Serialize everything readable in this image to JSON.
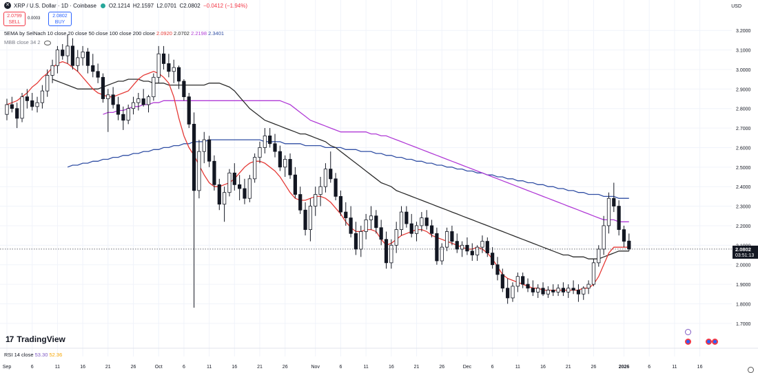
{
  "header": {
    "symbol": "XRP / U.S. Dollar · 1D · Coinbase",
    "open": "O2.1214",
    "high": "H2.1597",
    "low": "L2.0701",
    "close": "C2.0802",
    "change": "−0.0412 (−1.94%)",
    "sell_price": "2.0799",
    "sell_label": "SELL",
    "spread": "0.0003",
    "buy_price": "2.0802",
    "buy_label": "BUY",
    "currency": "USD"
  },
  "indicators": {
    "ema_label": "5EMA by SelNach 10 close 20 close 50 close 100 close 200 close",
    "ema_values": [
      "2.0920",
      "2.0702",
      "2.2198",
      "2.3401"
    ],
    "mbb_label": "MBB close 34 2",
    "rsi_label": "RSI 14 close",
    "rsi_values": [
      "53.30",
      "52.36"
    ]
  },
  "brand": {
    "logo_mark": "17",
    "name": "TradingView"
  },
  "colors": {
    "up": "#ffffff",
    "down": "#131722",
    "ema10": "#e53935",
    "ema50": "#2b2b2b",
    "ema100": "#b03ad6",
    "ema200": "#2f4da3",
    "negative": "#f23645",
    "accent": "#2962ff"
  },
  "chart_data": {
    "type": "candlestick",
    "ylim": [
      1.65,
      3.25
    ],
    "y_ticks": [
      "3.2000",
      "3.1000",
      "3.0000",
      "2.9000",
      "2.8000",
      "2.7000",
      "2.6000",
      "2.5000",
      "2.4000",
      "2.3000",
      "2.2000",
      "2.1000",
      "2.0000",
      "1.9000",
      "1.8000",
      "1.7000"
    ],
    "last_price": "2.0802",
    "countdown": "03:51:13",
    "x_ticks": [
      {
        "i": 0,
        "label": "Sep"
      },
      {
        "i": 5,
        "label": "6"
      },
      {
        "i": 10,
        "label": "11"
      },
      {
        "i": 15,
        "label": "16"
      },
      {
        "i": 20,
        "label": "21"
      },
      {
        "i": 25,
        "label": "26"
      },
      {
        "i": 30,
        "label": "Oct"
      },
      {
        "i": 35,
        "label": "6"
      },
      {
        "i": 40,
        "label": "11"
      },
      {
        "i": 45,
        "label": "16"
      },
      {
        "i": 50,
        "label": "21"
      },
      {
        "i": 55,
        "label": "26"
      },
      {
        "i": 61,
        "label": "Nov"
      },
      {
        "i": 66,
        "label": "6"
      },
      {
        "i": 71,
        "label": "11"
      },
      {
        "i": 76,
        "label": "16"
      },
      {
        "i": 81,
        "label": "21"
      },
      {
        "i": 86,
        "label": "26"
      },
      {
        "i": 91,
        "label": "Dec"
      },
      {
        "i": 96,
        "label": "6"
      },
      {
        "i": 101,
        "label": "11"
      },
      {
        "i": 106,
        "label": "16"
      },
      {
        "i": 111,
        "label": "21"
      },
      {
        "i": 116,
        "label": "26"
      },
      {
        "i": 122,
        "label": "2026"
      },
      {
        "i": 127,
        "label": "6"
      },
      {
        "i": 132,
        "label": "11"
      },
      {
        "i": 137,
        "label": "16"
      }
    ],
    "candles": [
      [
        2.77,
        2.85,
        2.74,
        2.82
      ],
      [
        2.82,
        2.86,
        2.78,
        2.8
      ],
      [
        2.8,
        2.83,
        2.7,
        2.75
      ],
      [
        2.75,
        2.88,
        2.73,
        2.86
      ],
      [
        2.86,
        2.9,
        2.8,
        2.84
      ],
      [
        2.84,
        2.88,
        2.79,
        2.81
      ],
      [
        2.81,
        2.86,
        2.78,
        2.83
      ],
      [
        2.83,
        2.92,
        2.8,
        2.89
      ],
      [
        2.89,
        3.0,
        2.86,
        2.97
      ],
      [
        2.97,
        3.05,
        2.93,
        3.02
      ],
      [
        3.02,
        3.12,
        2.98,
        3.1
      ],
      [
        3.1,
        3.13,
        3.05,
        3.07
      ],
      [
        3.07,
        3.18,
        3.03,
        3.12
      ],
      [
        3.12,
        3.16,
        3.0,
        3.02
      ],
      [
        3.02,
        3.1,
        2.99,
        3.06
      ],
      [
        3.06,
        3.12,
        3.02,
        3.09
      ],
      [
        3.09,
        3.11,
        2.98,
        3.02
      ],
      [
        3.02,
        3.08,
        2.96,
        2.99
      ],
      [
        2.99,
        3.03,
        2.93,
        2.96
      ],
      [
        2.96,
        2.98,
        2.83,
        2.85
      ],
      [
        2.85,
        2.9,
        2.68,
        2.87
      ],
      [
        2.87,
        2.91,
        2.8,
        2.82
      ],
      [
        2.82,
        2.86,
        2.74,
        2.77
      ],
      [
        2.77,
        2.81,
        2.69,
        2.74
      ],
      [
        2.74,
        2.82,
        2.72,
        2.8
      ],
      [
        2.8,
        2.86,
        2.77,
        2.83
      ],
      [
        2.83,
        2.88,
        2.79,
        2.85
      ],
      [
        2.85,
        2.9,
        2.81,
        2.82
      ],
      [
        2.82,
        2.87,
        2.78,
        2.86
      ],
      [
        2.86,
        2.98,
        2.84,
        2.96
      ],
      [
        2.96,
        3.12,
        2.93,
        3.08
      ],
      [
        3.08,
        3.12,
        3.0,
        3.03
      ],
      [
        3.03,
        3.08,
        2.96,
        2.99
      ],
      [
        2.99,
        3.05,
        2.93,
        3.01
      ],
      [
        3.01,
        3.02,
        2.9,
        2.94
      ],
      [
        2.94,
        2.95,
        2.84,
        2.86
      ],
      [
        2.86,
        2.88,
        2.7,
        2.72
      ],
      [
        2.72,
        2.78,
        1.78,
        2.38
      ],
      [
        2.38,
        2.64,
        2.34,
        2.58
      ],
      [
        2.58,
        2.68,
        2.52,
        2.64
      ],
      [
        2.64,
        2.66,
        2.5,
        2.53
      ],
      [
        2.53,
        2.56,
        2.38,
        2.41
      ],
      [
        2.41,
        2.44,
        2.28,
        2.31
      ],
      [
        2.31,
        2.4,
        2.22,
        2.37
      ],
      [
        2.37,
        2.49,
        2.35,
        2.47
      ],
      [
        2.47,
        2.52,
        2.38,
        2.41
      ],
      [
        2.41,
        2.46,
        2.33,
        2.39
      ],
      [
        2.39,
        2.44,
        2.31,
        2.34
      ],
      [
        2.34,
        2.46,
        2.32,
        2.44
      ],
      [
        2.44,
        2.57,
        2.42,
        2.55
      ],
      [
        2.55,
        2.63,
        2.52,
        2.6
      ],
      [
        2.6,
        2.7,
        2.57,
        2.66
      ],
      [
        2.66,
        2.7,
        2.6,
        2.62
      ],
      [
        2.62,
        2.67,
        2.55,
        2.58
      ],
      [
        2.58,
        2.61,
        2.48,
        2.5
      ],
      [
        2.5,
        2.56,
        2.45,
        2.54
      ],
      [
        2.54,
        2.57,
        2.44,
        2.46
      ],
      [
        2.46,
        2.5,
        2.34,
        2.36
      ],
      [
        2.36,
        2.4,
        2.26,
        2.28
      ],
      [
        2.28,
        2.32,
        2.15,
        2.18
      ],
      [
        2.18,
        2.34,
        2.12,
        2.3
      ],
      [
        2.3,
        2.4,
        2.25,
        2.36
      ],
      [
        2.36,
        2.45,
        2.3,
        2.4
      ],
      [
        2.4,
        2.52,
        2.37,
        2.49
      ],
      [
        2.49,
        2.58,
        2.42,
        2.44
      ],
      [
        2.44,
        2.47,
        2.33,
        2.35
      ],
      [
        2.35,
        2.38,
        2.25,
        2.27
      ],
      [
        2.27,
        2.32,
        2.2,
        2.24
      ],
      [
        2.24,
        2.3,
        2.14,
        2.16
      ],
      [
        2.16,
        2.22,
        2.05,
        2.08
      ],
      [
        2.08,
        2.2,
        2.04,
        2.17
      ],
      [
        2.17,
        2.26,
        2.13,
        2.23
      ],
      [
        2.23,
        2.3,
        2.18,
        2.25
      ],
      [
        2.25,
        2.28,
        2.16,
        2.19
      ],
      [
        2.19,
        2.23,
        2.1,
        2.13
      ],
      [
        2.13,
        2.17,
        1.98,
        2.01
      ],
      [
        2.01,
        2.13,
        1.98,
        2.1
      ],
      [
        2.1,
        2.22,
        2.06,
        2.18
      ],
      [
        2.18,
        2.3,
        2.15,
        2.27
      ],
      [
        2.27,
        2.3,
        2.19,
        2.21
      ],
      [
        2.21,
        2.26,
        2.14,
        2.16
      ],
      [
        2.16,
        2.22,
        2.12,
        2.2
      ],
      [
        2.2,
        2.27,
        2.17,
        2.24
      ],
      [
        2.24,
        2.28,
        2.18,
        2.2
      ],
      [
        2.2,
        2.23,
        2.14,
        2.16
      ],
      [
        2.16,
        2.19,
        2.0,
        2.02
      ],
      [
        2.02,
        2.11,
        2.0,
        2.09
      ],
      [
        2.09,
        2.19,
        2.07,
        2.17
      ],
      [
        2.17,
        2.2,
        2.1,
        2.12
      ],
      [
        2.12,
        2.16,
        2.06,
        2.08
      ],
      [
        2.08,
        2.12,
        2.04,
        2.1
      ],
      [
        2.1,
        2.14,
        2.05,
        2.07
      ],
      [
        2.07,
        2.11,
        2.02,
        2.05
      ],
      [
        2.05,
        2.1,
        2.02,
        2.09
      ],
      [
        2.09,
        2.15,
        2.06,
        2.12
      ],
      [
        2.12,
        2.14,
        2.04,
        2.06
      ],
      [
        2.06,
        2.09,
        1.98,
        2.0
      ],
      [
        2.0,
        2.04,
        1.92,
        1.95
      ],
      [
        1.95,
        1.98,
        1.86,
        1.88
      ],
      [
        1.88,
        1.93,
        1.8,
        1.83
      ],
      [
        1.83,
        1.91,
        1.81,
        1.89
      ],
      [
        1.89,
        1.96,
        1.86,
        1.94
      ],
      [
        1.94,
        1.96,
        1.88,
        1.9
      ],
      [
        1.9,
        1.93,
        1.86,
        1.88
      ],
      [
        1.88,
        1.92,
        1.84,
        1.86
      ],
      [
        1.86,
        1.9,
        1.83,
        1.88
      ],
      [
        1.88,
        1.91,
        1.84,
        1.85
      ],
      [
        1.85,
        1.89,
        1.83,
        1.87
      ],
      [
        1.87,
        1.9,
        1.84,
        1.86
      ],
      [
        1.86,
        1.9,
        1.84,
        1.88
      ],
      [
        1.88,
        1.91,
        1.84,
        1.86
      ],
      [
        1.86,
        1.9,
        1.83,
        1.88
      ],
      [
        1.88,
        1.92,
        1.85,
        1.87
      ],
      [
        1.87,
        1.9,
        1.81,
        1.85
      ],
      [
        1.85,
        1.89,
        1.82,
        1.88
      ],
      [
        1.88,
        1.92,
        1.85,
        1.9
      ],
      [
        1.9,
        2.03,
        1.89,
        2.01
      ],
      [
        2.01,
        2.1,
        1.99,
        2.08
      ],
      [
        2.08,
        2.25,
        2.05,
        2.2
      ],
      [
        2.2,
        2.37,
        2.16,
        2.34
      ],
      [
        2.34,
        2.42,
        2.27,
        2.3
      ],
      [
        2.3,
        2.33,
        2.15,
        2.18
      ],
      [
        2.18,
        2.2,
        2.09,
        2.12
      ],
      [
        2.1214,
        2.1597,
        2.0701,
        2.0802
      ]
    ],
    "ema10": [
      2.82,
      2.83,
      2.84,
      2.86,
      2.88,
      2.91,
      2.93,
      2.96,
      2.98,
      3.01,
      3.03,
      3.04,
      3.03,
      3.01,
      2.99,
      2.96,
      2.93,
      2.9,
      2.88,
      2.87,
      2.86,
      2.86,
      2.87,
      2.88,
      2.89,
      2.92,
      2.95,
      2.97,
      2.98,
      2.99,
      2.98,
      2.96,
      2.93,
      2.86,
      2.75,
      2.66,
      2.6,
      2.56,
      2.51,
      2.46,
      2.42,
      2.4,
      2.4,
      2.41,
      2.42,
      2.44,
      2.47,
      2.5,
      2.52,
      2.53,
      2.53,
      2.52,
      2.5,
      2.48,
      2.45,
      2.41,
      2.37,
      2.34,
      2.33,
      2.33,
      2.34,
      2.35,
      2.35,
      2.34,
      2.32,
      2.29,
      2.26,
      2.22,
      2.19,
      2.17,
      2.17,
      2.18,
      2.18,
      2.17,
      2.13,
      2.1,
      2.11,
      2.13,
      2.15,
      2.16,
      2.17,
      2.18,
      2.18,
      2.17,
      2.15,
      2.14,
      2.13,
      2.12,
      2.11,
      2.1,
      2.09,
      2.08,
      2.08,
      2.09,
      2.08,
      2.06,
      2.03,
      1.99,
      1.95,
      1.93,
      1.92,
      1.91,
      1.9,
      1.89,
      1.88,
      1.88,
      1.87,
      1.87,
      1.87,
      1.87,
      1.87,
      1.87,
      1.87,
      1.87,
      1.88,
      1.88,
      1.9,
      1.94,
      2.0,
      2.06,
      2.09,
      2.09,
      2.09,
      2.09
    ],
    "ema50": [
      2.95,
      2.94,
      2.93,
      2.92,
      2.91,
      2.9,
      2.9,
      2.9,
      2.9,
      2.9,
      2.91,
      2.92,
      2.93,
      2.94,
      2.94,
      2.95,
      2.95,
      2.95,
      2.94,
      2.94,
      2.93,
      2.93,
      2.93,
      2.92,
      2.92,
      2.92,
      2.92,
      2.92,
      2.92,
      2.92,
      2.92,
      2.93,
      2.93,
      2.93,
      2.92,
      2.91,
      2.89,
      2.86,
      2.83,
      2.8,
      2.78,
      2.76,
      2.74,
      2.73,
      2.72,
      2.71,
      2.7,
      2.69,
      2.68,
      2.67,
      2.67,
      2.66,
      2.65,
      2.64,
      2.63,
      2.61,
      2.6,
      2.58,
      2.56,
      2.54,
      2.52,
      2.5,
      2.48,
      2.46,
      2.44,
      2.42,
      2.41,
      2.4,
      2.38,
      2.37,
      2.36,
      2.35,
      2.34,
      2.33,
      2.32,
      2.31,
      2.3,
      2.29,
      2.28,
      2.27,
      2.26,
      2.25,
      2.24,
      2.23,
      2.22,
      2.21,
      2.2,
      2.19,
      2.18,
      2.17,
      2.16,
      2.15,
      2.14,
      2.13,
      2.12,
      2.11,
      2.1,
      2.09,
      2.08,
      2.07,
      2.06,
      2.05,
      2.05,
      2.04,
      2.04,
      2.04,
      2.03,
      2.03,
      2.03,
      2.04,
      2.05,
      2.06,
      2.07,
      2.07,
      2.07
    ],
    "ema100": [
      2.77,
      2.78,
      2.78,
      2.79,
      2.79,
      2.8,
      2.81,
      2.81,
      2.82,
      2.82,
      2.83,
      2.83,
      2.84,
      2.84,
      2.84,
      2.84,
      2.84,
      2.84,
      2.84,
      2.84,
      2.84,
      2.84,
      2.84,
      2.84,
      2.84,
      2.84,
      2.84,
      2.84,
      2.84,
      2.84,
      2.84,
      2.84,
      2.84,
      2.84,
      2.84,
      2.84,
      2.83,
      2.82,
      2.8,
      2.78,
      2.76,
      2.74,
      2.73,
      2.72,
      2.71,
      2.7,
      2.69,
      2.68,
      2.68,
      2.68,
      2.68,
      2.68,
      2.68,
      2.67,
      2.67,
      2.66,
      2.66,
      2.65,
      2.64,
      2.63,
      2.62,
      2.61,
      2.6,
      2.59,
      2.58,
      2.57,
      2.56,
      2.55,
      2.54,
      2.53,
      2.52,
      2.51,
      2.5,
      2.49,
      2.48,
      2.47,
      2.46,
      2.45,
      2.44,
      2.43,
      2.42,
      2.41,
      2.4,
      2.39,
      2.38,
      2.37,
      2.36,
      2.35,
      2.34,
      2.33,
      2.32,
      2.31,
      2.3,
      2.29,
      2.28,
      2.27,
      2.26,
      2.25,
      2.24,
      2.23,
      2.23,
      2.23,
      2.22,
      2.22,
      2.22
    ],
    "ema200": [
      2.5,
      2.51,
      2.51,
      2.52,
      2.52,
      2.53,
      2.53,
      2.54,
      2.54,
      2.55,
      2.55,
      2.56,
      2.56,
      2.57,
      2.57,
      2.58,
      2.58,
      2.59,
      2.59,
      2.6,
      2.6,
      2.61,
      2.61,
      2.62,
      2.62,
      2.63,
      2.63,
      2.63,
      2.64,
      2.64,
      2.64,
      2.64,
      2.64,
      2.64,
      2.64,
      2.64,
      2.64,
      2.64,
      2.64,
      2.63,
      2.63,
      2.63,
      2.63,
      2.62,
      2.62,
      2.62,
      2.62,
      2.61,
      2.61,
      2.61,
      2.61,
      2.6,
      2.6,
      2.6,
      2.6,
      2.59,
      2.59,
      2.59,
      2.58,
      2.58,
      2.58,
      2.57,
      2.57,
      2.56,
      2.56,
      2.55,
      2.55,
      2.54,
      2.54,
      2.53,
      2.53,
      2.52,
      2.52,
      2.51,
      2.51,
      2.5,
      2.5,
      2.49,
      2.49,
      2.48,
      2.48,
      2.47,
      2.47,
      2.46,
      2.46,
      2.45,
      2.45,
      2.44,
      2.44,
      2.43,
      2.43,
      2.42,
      2.42,
      2.41,
      2.41,
      2.4,
      2.4,
      2.39,
      2.39,
      2.38,
      2.38,
      2.37,
      2.37,
      2.36,
      2.36,
      2.36,
      2.35,
      2.35,
      2.35,
      2.34,
      2.34,
      2.34
    ]
  }
}
